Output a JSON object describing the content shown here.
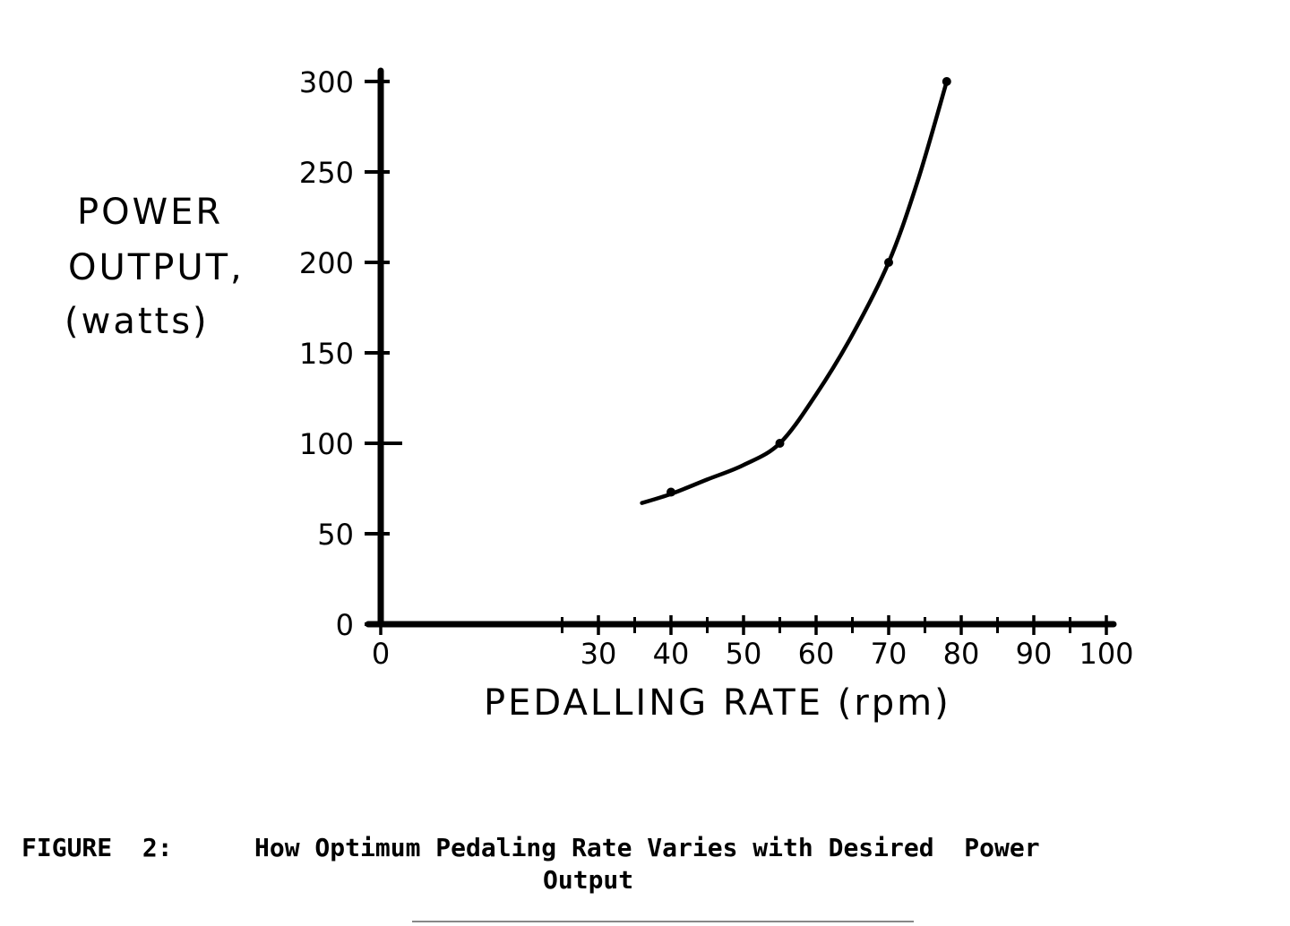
{
  "chart_data": {
    "type": "line",
    "xlabel": "PEDALLING RATE (rpm)",
    "ylabel_lines": [
      "POWER",
      "OUTPUT,",
      "(watts)"
    ],
    "x_tick_labels": [
      "0",
      "30",
      "40",
      "50",
      "60",
      "70",
      "80",
      "90",
      "100"
    ],
    "x_tick_values": [
      0,
      30,
      40,
      50,
      60,
      70,
      80,
      90,
      100
    ],
    "y_ticks": [
      0,
      50,
      100,
      150,
      200,
      250,
      300
    ],
    "xlim": [
      0,
      100
    ],
    "ylim": [
      0,
      300
    ],
    "grid": false,
    "series": [
      {
        "x": [
          36,
          40,
          45,
          50,
          55,
          60,
          65,
          70,
          74,
          78
        ],
        "y": [
          67,
          72,
          80,
          88,
          100,
          127,
          160,
          200,
          245,
          300
        ]
      }
    ],
    "markers": [
      {
        "x": 40,
        "y": 73
      },
      {
        "x": 55,
        "y": 100
      },
      {
        "x": 70,
        "y": 200
      },
      {
        "x": 78,
        "y": 300
      }
    ]
  },
  "caption": {
    "label": "FIGURE  2:",
    "line1": "How Optimum Pedaling Rate Varies with Desired  Power",
    "line2": "Output"
  }
}
